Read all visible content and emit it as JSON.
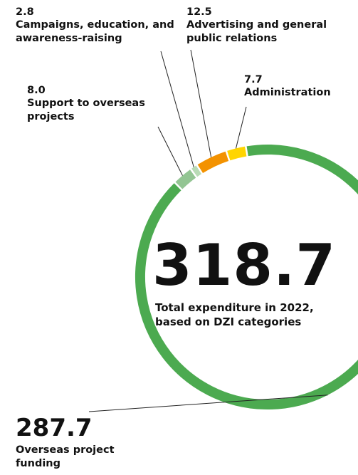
{
  "chart_data": {
    "type": "donut",
    "categories": [
      "Overseas project funding",
      "Support to overseas projects",
      "Campaigns, education, and awareness-raising",
      "Advertising and general public relations",
      "Administration"
    ],
    "values": [
      287.7,
      8.0,
      2.8,
      12.5,
      7.7
    ],
    "value_labels": [
      "287.7",
      "8.0",
      "2.8",
      "12.5",
      "7.7"
    ],
    "colors": [
      "#4caa50",
      "#93c593",
      "#b8dbb5",
      "#f39200",
      "#ffd500"
    ],
    "center_value": 318.7,
    "center_label": "Total expenditure in 2022, based on DZI categories"
  }
}
